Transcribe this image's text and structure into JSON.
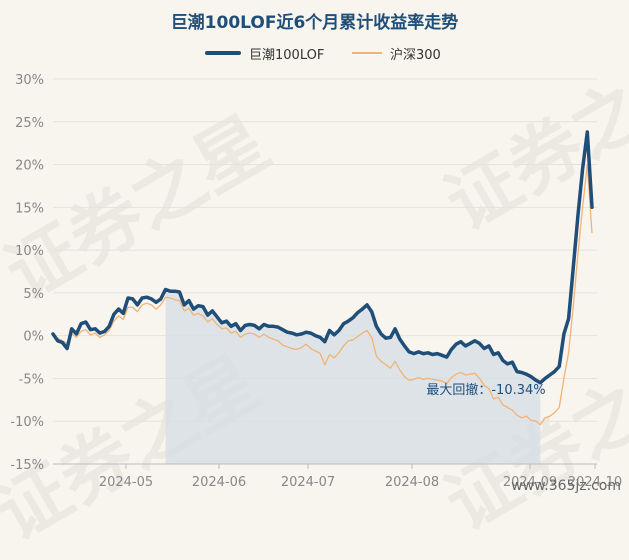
{
  "title": "巨潮100LOF近6个月累计收益率走势",
  "legend": {
    "series1": "巨潮100LOF",
    "series2": "沪深300"
  },
  "watermark": "证券之星",
  "footer": "www.365jz.com",
  "colors": {
    "series1": "#1f4e79",
    "series2": "#f2b374",
    "drawdown_fill": "#d6dde5",
    "grid": "#e6e2dc",
    "axis_text": "#888888"
  },
  "chart_data": {
    "type": "line",
    "ylim": [
      -15,
      30
    ],
    "yticks": [
      -15,
      -10,
      -5,
      0,
      5,
      10,
      15,
      20,
      25,
      30
    ],
    "ytick_labels": [
      "-15%",
      "-10%",
      "-5%",
      "0%",
      "5%",
      "10%",
      "15%",
      "20%",
      "25%",
      "30%"
    ],
    "xticks": [
      "2024-05",
      "2024-06",
      "2024-07",
      "2024-08",
      "2024-09",
      "2024-10"
    ],
    "annotation": "最大回撤：-10.34%",
    "series": [
      {
        "name": "巨潮100LOF",
        "values": [
          0.2,
          -0.6,
          -0.8,
          -1.5,
          0.8,
          0.2,
          1.4,
          1.6,
          0.7,
          0.8,
          0.3,
          0.5,
          1.1,
          2.5,
          3.1,
          2.6,
          4.4,
          4.3,
          3.6,
          4.4,
          4.5,
          4.3,
          3.9,
          4.3,
          5.4,
          5.2,
          5.2,
          5.1,
          3.6,
          4.1,
          3.1,
          3.5,
          3.4,
          2.4,
          2.9,
          2.2,
          1.5,
          1.7,
          1.1,
          1.4,
          0.6,
          1.2,
          1.3,
          1.2,
          0.8,
          1.3,
          1.1,
          1.1,
          1.0,
          0.7,
          0.4,
          0.3,
          0.1,
          0.2,
          0.4,
          0.3,
          0.0,
          -0.2,
          -0.7,
          0.6,
          0.1,
          0.6,
          1.4,
          1.7,
          2.1,
          2.7,
          3.1,
          3.6,
          2.8,
          1.1,
          0.2,
          -0.3,
          -0.2,
          0.8,
          -0.4,
          -1.2,
          -1.9,
          -2.1,
          -1.9,
          -2.1,
          -2.0,
          -2.2,
          -2.1,
          -2.3,
          -2.5,
          -1.6,
          -1.0,
          -0.7,
          -1.2,
          -0.9,
          -0.6,
          -0.9,
          -1.5,
          -1.2,
          -2.2,
          -2.0,
          -2.9,
          -3.3,
          -3.1,
          -4.2,
          -4.3,
          -4.5,
          -4.8,
          -5.2,
          -5.5,
          -5.0,
          -4.6,
          -4.2,
          -3.6,
          0.2,
          2.0,
          8.0,
          14.0,
          19.5,
          23.8,
          15.0
        ]
      },
      {
        "name": "沪深300",
        "values": [
          0.1,
          -0.3,
          -0.6,
          -0.9,
          0.2,
          -0.2,
          0.5,
          0.7,
          0.1,
          0.3,
          -0.2,
          0.1,
          0.6,
          1.7,
          2.3,
          1.9,
          3.3,
          3.3,
          2.8,
          3.6,
          3.8,
          3.6,
          3.1,
          3.6,
          4.5,
          4.4,
          4.2,
          4.1,
          2.9,
          3.2,
          2.4,
          2.6,
          2.3,
          1.6,
          2.0,
          1.3,
          0.8,
          0.9,
          0.3,
          0.5,
          -0.2,
          0.2,
          0.3,
          0.2,
          -0.2,
          0.2,
          -0.2,
          -0.4,
          -0.6,
          -1.1,
          -1.3,
          -1.5,
          -1.6,
          -1.4,
          -1.0,
          -1.5,
          -1.8,
          -2.1,
          -3.4,
          -2.2,
          -2.6,
          -2.0,
          -1.2,
          -0.6,
          -0.5,
          -0.1,
          0.3,
          0.6,
          -0.2,
          -2.4,
          -3.0,
          -3.4,
          -3.8,
          -3.0,
          -4.0,
          -4.8,
          -5.2,
          -5.1,
          -4.9,
          -5.1,
          -5.0,
          -5.1,
          -5.2,
          -5.3,
          -5.6,
          -4.9,
          -4.5,
          -4.3,
          -4.6,
          -4.5,
          -4.4,
          -5.0,
          -5.8,
          -6.2,
          -7.4,
          -7.2,
          -8.1,
          -8.4,
          -8.7,
          -9.3,
          -9.6,
          -9.4,
          -9.9,
          -10.0,
          -10.4,
          -9.6,
          -9.4,
          -9.0,
          -8.4,
          -5.0,
          -2.0,
          3.5,
          9.5,
          15.0,
          20.0,
          12.0
        ]
      }
    ]
  }
}
